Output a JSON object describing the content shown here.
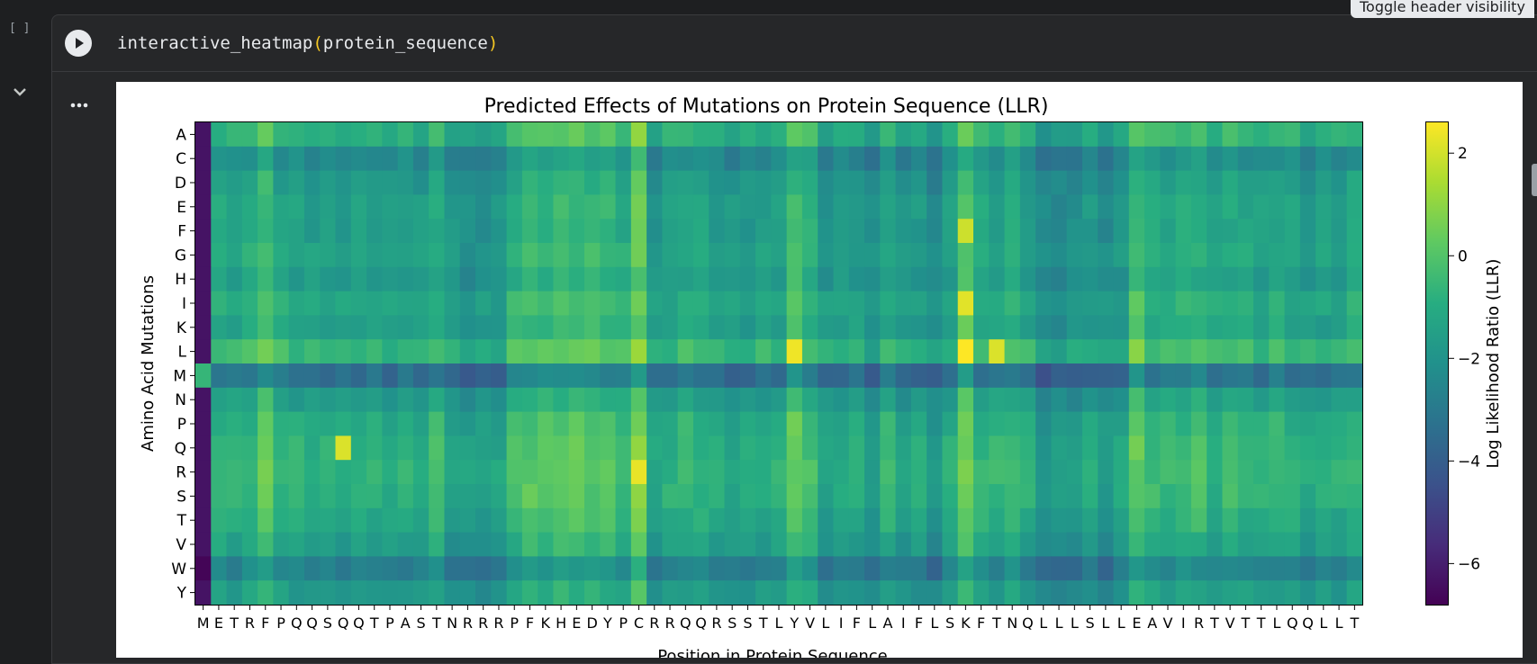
{
  "cell": {
    "bracket_label": "[ ]",
    "code_fn": "interactive_heatmap",
    "code_open": "(",
    "code_arg": "protein_sequence",
    "code_close": ")",
    "tooltip": "Toggle header visibility"
  },
  "chart_data": {
    "type": "heatmap",
    "title": "Predicted Effects of Mutations on Protein Sequence (LLR)",
    "xlabel": "Position in Protein Sequence",
    "ylabel": "Amino Acid Mutations",
    "colorbar_label": "Log Likelihood Ratio (LLR)",
    "colormap": "viridis",
    "vmin": -6.8,
    "vmax": 2.6,
    "colorbar_ticks": [
      "2",
      "0",
      "−2",
      "−4",
      "−6"
    ],
    "colorbar_tick_values": [
      2,
      0,
      -2,
      -4,
      -6
    ],
    "rows": [
      "A",
      "C",
      "D",
      "E",
      "F",
      "G",
      "H",
      "I",
      "K",
      "L",
      "M",
      "N",
      "P",
      "Q",
      "R",
      "S",
      "T",
      "V",
      "W",
      "Y"
    ],
    "columns": [
      "M",
      "E",
      "T",
      "R",
      "F",
      "P",
      "Q",
      "Q",
      "S",
      "Q",
      "Q",
      "T",
      "P",
      "A",
      "S",
      "T",
      "N",
      "R",
      "R",
      "R",
      "P",
      "F",
      "K",
      "H",
      "E",
      "D",
      "Y",
      "P",
      "C",
      "R",
      "R",
      "Q",
      "Q",
      "R",
      "S",
      "S",
      "T",
      "L",
      "Y",
      "V",
      "L",
      "I",
      "F",
      "L",
      "A",
      "I",
      "F",
      "L",
      "S",
      "K",
      "F",
      "T",
      "N",
      "Q",
      "L",
      "L",
      "L",
      "S",
      "L",
      "L",
      "E",
      "A",
      "V",
      "I",
      "R",
      "T",
      "V",
      "T",
      "T",
      "L",
      "Q",
      "Q",
      "L",
      "L",
      "T"
    ],
    "row_offset": {
      "A": 0.3,
      "C": -1.2,
      "D": -0.6,
      "E": -0.3,
      "F": -0.4,
      "G": -0.2,
      "H": -0.5,
      "I": 0.0,
      "K": -0.3,
      "L": 0.6,
      "M": -2.2,
      "N": -0.5,
      "P": 0.1,
      "Q": 0.3,
      "R": 0.4,
      "S": 0.3,
      "T": 0.0,
      "V": -0.4,
      "W": -1.6,
      "Y": -0.6
    },
    "column_offset": [
      -5.0,
      0.0,
      -0.1,
      0.1,
      0.9,
      0.0,
      -0.2,
      -0.3,
      -0.3,
      -0.4,
      -0.3,
      -0.2,
      -0.4,
      -0.2,
      -0.4,
      0.2,
      -0.7,
      -0.9,
      -0.8,
      -0.7,
      0.4,
      0.7,
      0.6,
      0.8,
      0.8,
      0.7,
      0.6,
      0.2,
      1.5,
      -0.6,
      -0.3,
      0.1,
      -0.1,
      -0.4,
      -0.6,
      -0.5,
      -0.3,
      -0.3,
      1.0,
      0.3,
      -0.7,
      -0.5,
      -0.4,
      -1.0,
      0.0,
      -0.7,
      -0.5,
      -1.1,
      -0.3,
      1.3,
      0.0,
      -0.1,
      0.3,
      -0.3,
      -1.2,
      -1.1,
      -0.9,
      -0.6,
      -1.0,
      -0.6,
      0.9,
      0.1,
      0.1,
      0.2,
      0.4,
      -0.2,
      0.2,
      0.0,
      -0.3,
      0.1,
      -0.2,
      -0.5,
      -0.3,
      -0.3,
      0.1
    ],
    "highlighted_cells": [
      {
        "row": "M",
        "column_index": 0,
        "value": -0.6
      },
      {
        "row": "Q",
        "column_index": 9,
        "value": 2.1
      },
      {
        "row": "L",
        "column_index": 38,
        "value": 2.4
      },
      {
        "row": "L",
        "column_index": 49,
        "value": 2.6
      },
      {
        "row": "I",
        "column_index": 49,
        "value": 2.2
      },
      {
        "row": "F",
        "column_index": 49,
        "value": 1.9
      },
      {
        "row": "R",
        "column_index": 28,
        "value": 2.3
      },
      {
        "row": "L",
        "column_index": 51,
        "value": 2.1
      }
    ]
  }
}
